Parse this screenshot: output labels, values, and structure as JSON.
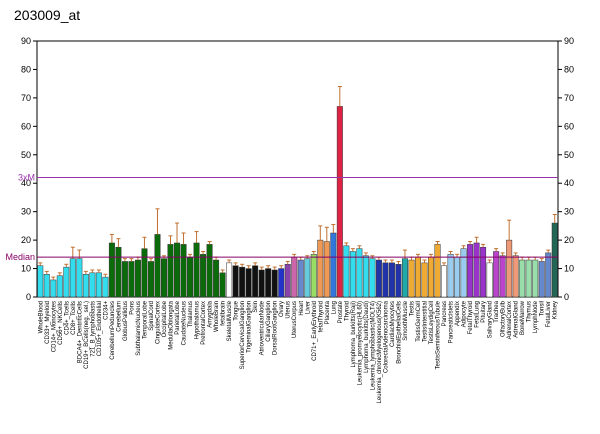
{
  "chart_data": {
    "type": "bar",
    "title": "203009_at",
    "categories": [
      "WholeBlood",
      "CD33+_Myeloid",
      "CD14+_Monocytes",
      "CD56+_NKCells",
      "CD4+_Tcells",
      "CD8+_Tcells",
      "BDCA4+_DentriticCells",
      "CD19+_BCells(neg._sel.)",
      "721_B_lymphoblasts",
      "CD105+_Endothelial",
      "CD34+",
      "CerebellumPeduncles",
      "Cerebellum",
      "GlobusPallidus",
      "Pons",
      "SubthalamicNucleus",
      "TemporalLobe",
      "SpinalCord",
      "CingulateCortex",
      "OccipitalLobe",
      "MedullaOblongata",
      "ParietalLobe",
      "CaudateNucleus",
      "Thalamus",
      "Hypothalamus",
      "PrefrontalCortex",
      "Amygdala",
      "WholeBrain",
      "fetalbrain",
      "SkeletalMuscle",
      "Tongue",
      "SuperiorCervicalGanglion",
      "TrigeminalGanglion",
      "Skin",
      "AtrioventricularNode",
      "CiliaryGanglion",
      "DorsalRootGanglion",
      "Ovary",
      "Uterus",
      "UterusCorpus",
      "Heart",
      "Liver",
      "CD71+_EarlyErythroid",
      "fetalThyroid",
      "Placenta",
      "Lung",
      "Prostate",
      "Thyroid",
      "Lymphoma_burkitts(Raji)",
      "Leukemia_promyelocytic(HL60)",
      "Lymphoma_burkitts(Daudi)",
      "Leukemia_lymphoblastic(MOLT4)",
      "Leukemia_chronicMyelogenous(K562)",
      "ColorectalAdenocarcinoma",
      "CardiacMyocytes",
      "BronchialEpithelialCells",
      "SmoothMuscle",
      "Testis",
      "TestisGermCell",
      "TestisInterstitial",
      "TestisLeydigCell",
      "TestisSeminiferousTubule",
      "Pancreas",
      "PancreaticIslets",
      "Appendix",
      "Adipocyte",
      "FetalThyroid",
      "FetalLung",
      "Pituitary",
      "SalivaryGland",
      "Trachea",
      "OlfactoryBulb",
      "AdrenalCortex",
      "AdrenalGland",
      "BoneMarrow",
      "Thymus",
      "LymphNode",
      "Tonsil",
      "FetalLiver",
      "Kidney"
    ],
    "values": [
      11,
      8,
      6,
      7.5,
      10.5,
      13.5,
      13.5,
      8,
      8.5,
      8.5,
      7,
      19,
      17.5,
      12.5,
      12.5,
      13,
      17,
      12.5,
      22,
      13.5,
      18.5,
      19,
      18.5,
      14,
      19,
      15,
      18.5,
      13,
      8.5,
      12,
      11,
      10.5,
      10,
      11,
      9.5,
      10,
      9.5,
      10,
      11.5,
      14,
      13,
      13.5,
      15,
      20,
      19.5,
      22.5,
      67,
      18,
      16,
      17,
      14.5,
      13.5,
      13,
      12,
      12,
      11.5,
      13.5,
      13,
      14,
      12,
      14,
      18.5,
      11,
      15,
      14,
      17,
      18.5,
      19,
      17.5,
      12,
      16,
      14.5,
      20,
      14.5,
      13,
      13,
      13,
      12.5,
      15.5,
      26
    ],
    "errors": [
      1,
      1,
      1,
      1,
      1,
      4,
      3,
      1,
      1,
      1,
      1,
      3,
      3,
      1,
      1,
      1,
      4,
      1,
      9,
      1,
      3,
      7,
      4,
      1,
      4,
      1,
      1,
      1,
      1,
      1,
      1,
      1,
      1,
      1,
      1,
      1,
      1,
      1,
      1,
      1,
      1,
      1,
      1,
      5,
      5,
      3,
      7,
      1,
      1,
      1,
      1,
      1,
      1,
      1,
      1,
      1,
      3,
      1,
      1,
      1,
      1,
      1,
      1,
      1,
      1,
      1,
      1,
      2,
      1,
      1,
      1,
      1,
      7,
      1,
      1,
      1,
      1,
      1,
      1,
      3
    ],
    "colors": [
      "#33ddee",
      "#33ddee",
      "#33ddee",
      "#33ddee",
      "#33ddee",
      "#33ddee",
      "#33ddee",
      "#33ddee",
      "#33ddee",
      "#33ddee",
      "#33ddee",
      "#0b6b0b",
      "#0b6b0b",
      "#0b6b0b",
      "#0b6b0b",
      "#0b6b0b",
      "#0b6b0b",
      "#0b6b0b",
      "#0b6b0b",
      "#0b6b0b",
      "#0b6b0b",
      "#0b6b0b",
      "#0b6b0b",
      "#0b6b0b",
      "#0b6b0b",
      "#0b6b0b",
      "#0b6b0b",
      "#0b6b0b",
      "#0b6b0b",
      "#ffffff",
      "#111111",
      "#111111",
      "#111111",
      "#111111",
      "#111111",
      "#111111",
      "#111111",
      "#2233cc",
      "#8844aa",
      "#cc66aa",
      "#6688cc",
      "#66ccdd",
      "#99dd66",
      "#ee9955",
      "#ee9955",
      "#3377dd",
      "#dd2244",
      "#33ddee",
      "#33ddee",
      "#33ddee",
      "#33ddee",
      "#33ddee",
      "#2233aa",
      "#2233aa",
      "#2233aa",
      "#2233aa",
      "#22aaaa",
      "#eeaa33",
      "#eeaa33",
      "#eeaa33",
      "#eeaa33",
      "#eeaa33",
      "#ffffff",
      "#99ccee",
      "#99ccee",
      "#99ccee",
      "#9933cc",
      "#9933cc",
      "#9933cc",
      "#ffffff",
      "#bb44cc",
      "#bb44cc",
      "#ee9977",
      "#ee9977",
      "#99ddaa",
      "#99ddaa",
      "#99ddaa",
      "#6688cc",
      "#6688cc",
      "#226655"
    ],
    "ylim": [
      0,
      90
    ],
    "yticks": [
      0,
      10,
      20,
      30,
      40,
      50,
      60,
      70,
      80,
      90
    ],
    "median": 14,
    "median_label": "Median",
    "threexm": 42,
    "threexm_label": "3xM"
  }
}
